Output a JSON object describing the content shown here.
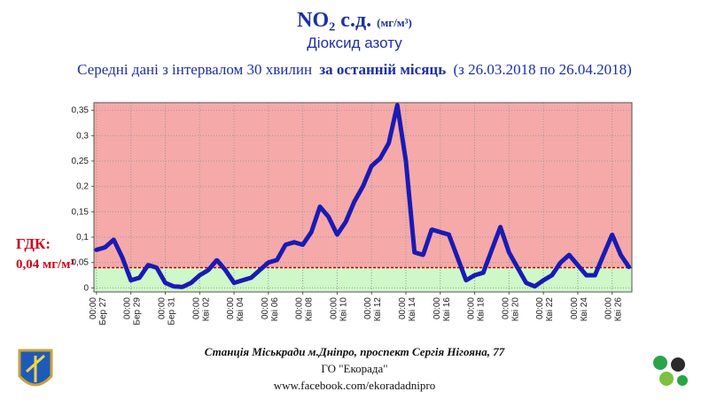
{
  "chart_data": {
    "type": "line",
    "title": "NO₂ с.д.",
    "unit": "(мг/м³)",
    "subtitle": "Діоксид азоту",
    "description": [
      "Середні дані з інтервалом 30 хвилин",
      "за останній місяць",
      "(з 26.03.2018 по 26.04.2018)"
    ],
    "categories": [
      "Бер 27",
      null,
      null,
      null,
      "Бер 29",
      null,
      null,
      null,
      "Бер 31",
      null,
      null,
      null,
      "Кві 02",
      null,
      null,
      null,
      "Кві 04",
      null,
      null,
      null,
      "Кві 06",
      null,
      null,
      null,
      "Кві 08",
      null,
      null,
      null,
      "Кві 10",
      null,
      null,
      null,
      "Кві 12",
      null,
      null,
      null,
      "Кві 14",
      null,
      null,
      null,
      "Кві 16",
      null,
      null,
      null,
      "Кві 18",
      null,
      null,
      null,
      "Кві 20",
      null,
      null,
      null,
      "Кві 22",
      null,
      null,
      null,
      "Кві 24",
      null,
      null,
      null,
      "Кві 26",
      null,
      null
    ],
    "time_labels": [
      "00:00",
      null,
      null,
      null,
      "00:00",
      null,
      null,
      null,
      "00:00",
      null,
      null,
      null,
      "00:00",
      null,
      null,
      null,
      "00:00",
      null,
      null,
      null,
      "00:00",
      null,
      null,
      null,
      "00:00",
      null,
      null,
      null,
      "00:00",
      null,
      null,
      null,
      "00:00",
      null,
      null,
      null,
      "00:00",
      null,
      null,
      null,
      "00:00",
      null,
      null,
      null,
      "00:00",
      null,
      null,
      null,
      "00:00",
      null,
      null,
      null,
      "00:00",
      null,
      null,
      null,
      "00:00",
      null,
      null,
      null,
      "00:00",
      null,
      null
    ],
    "values": [
      0.075,
      0.08,
      0.095,
      0.06,
      0.015,
      0.02,
      0.045,
      0.04,
      0.01,
      0.003,
      0.002,
      0.01,
      0.025,
      0.035,
      0.055,
      0.035,
      0.01,
      0.015,
      0.02,
      0.035,
      0.05,
      0.055,
      0.085,
      0.09,
      0.085,
      0.11,
      0.16,
      0.14,
      0.105,
      0.13,
      0.17,
      0.2,
      0.24,
      0.255,
      0.285,
      0.36,
      0.25,
      0.07,
      0.065,
      0.115,
      0.11,
      0.105,
      0.06,
      0.015,
      0.025,
      0.03,
      0.075,
      0.12,
      0.07,
      0.04,
      0.01,
      0.003,
      0.015,
      0.025,
      0.05,
      0.065,
      0.045,
      0.025,
      0.025,
      0.065,
      0.105,
      0.065,
      0.04
    ],
    "color": "#1a1ab4",
    "ylim": [
      -0.008,
      0.365
    ],
    "yticks": [
      0,
      {
        "value": 0.05,
        "label": "0,05"
      },
      {
        "value": 0.1,
        "label": "0,1"
      },
      {
        "value": 0.15,
        "label": "0,15"
      },
      {
        "value": 0.2,
        "label": "0,2"
      },
      {
        "value": 0.25,
        "label": "0,25"
      },
      {
        "value": 0.3,
        "label": "0,3"
      },
      {
        "value": 0.35,
        "label": "0,35"
      }
    ],
    "threshold_title": "ГДК:",
    "threshold": {
      "value": 0.04,
      "label": "0,04 мг/м³"
    },
    "above_color": "#f6a9a9",
    "below_color": "#cff7c8",
    "grid": true
  },
  "footer": {
    "station": "Станція Міськради м.Дніпро, проспект Сергія Нігояна, 77",
    "org": "ГО \"Екорада\"",
    "link": "www.facebook.com/ekoradadnipro"
  }
}
